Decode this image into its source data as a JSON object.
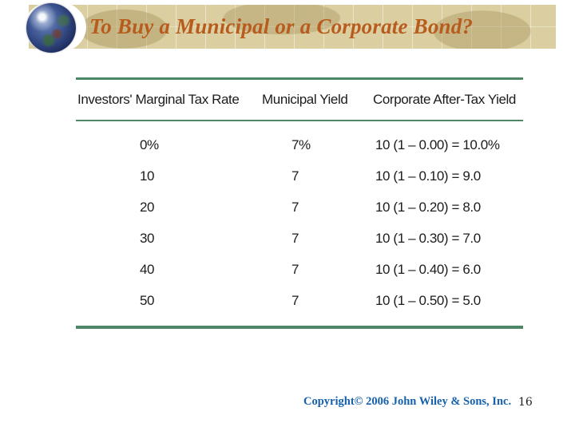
{
  "slide": {
    "title": "To Buy a Municipal or a Corporate Bond?",
    "footer": {
      "copyright": "Copyright© 2006 John Wiley & Sons, Inc.",
      "page_number": "16"
    }
  },
  "table": {
    "columns": [
      "Investors' Marginal Tax Rate",
      "Municipal Yield",
      "Corporate After-Tax Yield"
    ],
    "rows": [
      [
        "0%",
        "7%",
        "10 (1 – 0.00) = 10.0%"
      ],
      [
        "10",
        "7",
        "10 (1 – 0.10) = 9.0"
      ],
      [
        "20",
        "7",
        "10 (1 – 0.20) = 8.0"
      ],
      [
        "30",
        "7",
        "10 (1 – 0.30) = 7.0"
      ],
      [
        "40",
        "7",
        "10 (1 – 0.40) = 6.0"
      ],
      [
        "50",
        "7",
        "10 (1 – 0.50) = 5.0"
      ]
    ]
  },
  "colors": {
    "banner_background": "#dbcfa2",
    "title_text": "#b85c1e",
    "table_rule_green": "#4e8668",
    "copyright_blue": "#1661ad"
  }
}
